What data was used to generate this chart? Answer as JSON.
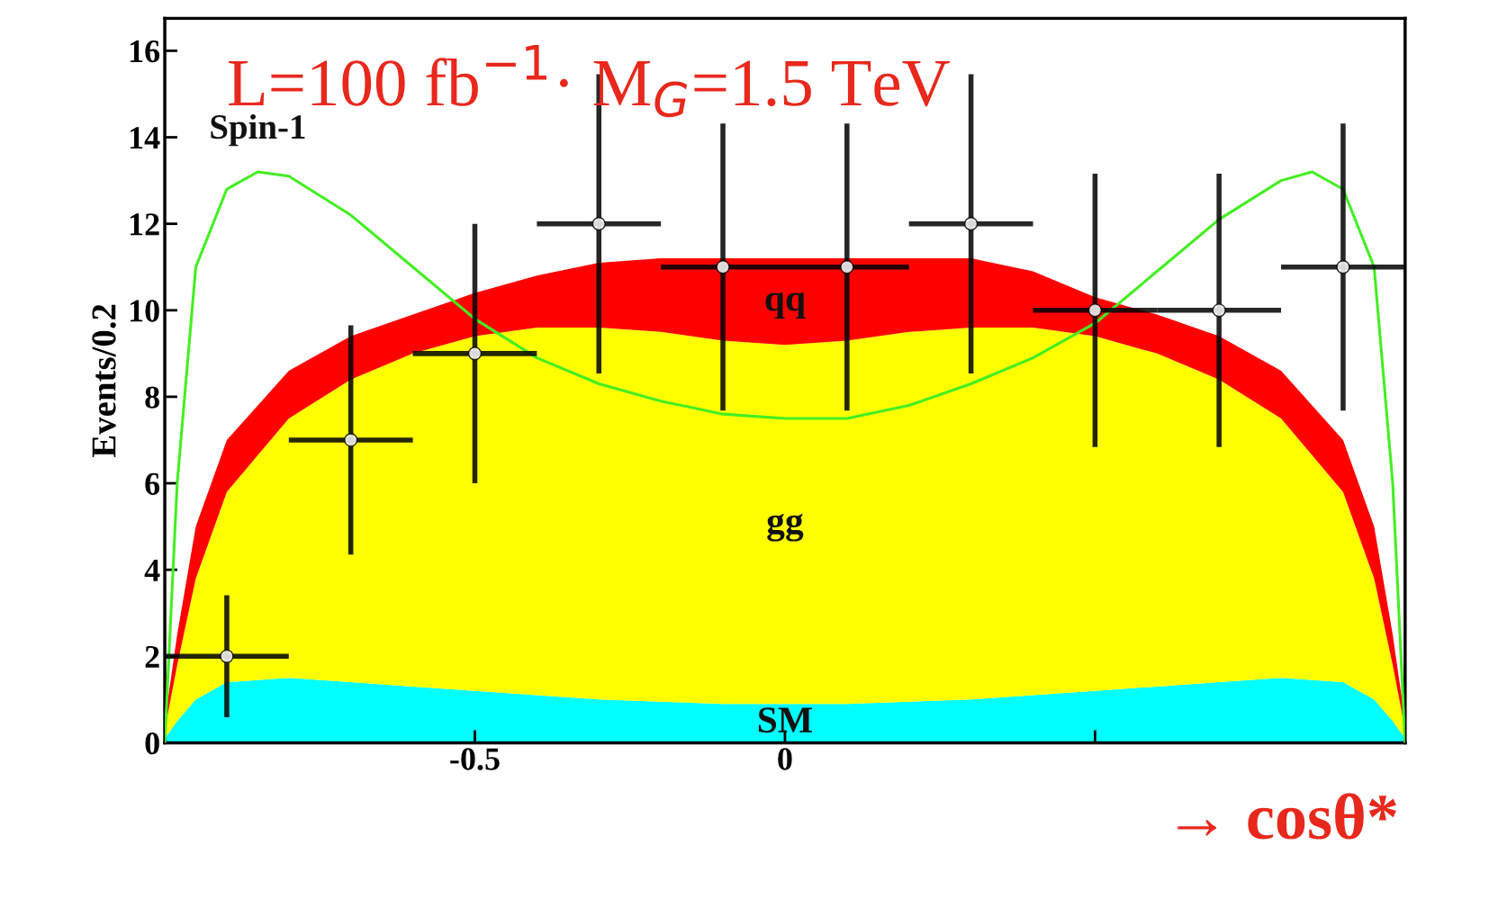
{
  "chart_data": {
    "type": "area",
    "title": "L=100 fb$^{−1}$· M$_{G}$=1.5 TeV",
    "xlabel": "→ cosθ*",
    "ylabel": "Events/0.2",
    "stacked": true,
    "xlim": [
      -1,
      1
    ],
    "ylim": [
      0,
      16.75
    ],
    "xticks": [
      -0.5,
      0,
      {
        "value": 0.5,
        "label": null
      }
    ],
    "yticks": [
      0,
      2,
      4,
      6,
      8,
      10,
      12,
      14,
      16
    ],
    "grid": false,
    "legend": false,
    "series": [
      {
        "name": "SM",
        "color": "#00ffff",
        "x": [
          -1,
          -0.98,
          -0.95,
          -0.9,
          -0.8,
          -0.7,
          -0.6,
          -0.5,
          -0.4,
          -0.3,
          -0.2,
          -0.1,
          0,
          0.1,
          0.2,
          0.3,
          0.4,
          0.5,
          0.6,
          0.7,
          0.8,
          0.9,
          0.95,
          0.98,
          1
        ],
        "values": [
          0.1,
          0.5,
          1.0,
          1.4,
          1.5,
          1.4,
          1.3,
          1.2,
          1.1,
          1.0,
          0.95,
          0.9,
          0.9,
          0.9,
          0.95,
          1.0,
          1.1,
          1.2,
          1.3,
          1.4,
          1.5,
          1.4,
          1.0,
          0.5,
          0.1
        ]
      },
      {
        "name": "gg",
        "color": "#ffff00",
        "x": [
          -1,
          -0.98,
          -0.95,
          -0.9,
          -0.8,
          -0.7,
          -0.6,
          -0.5,
          -0.4,
          -0.3,
          -0.2,
          -0.1,
          0,
          0.1,
          0.2,
          0.3,
          0.4,
          0.5,
          0.6,
          0.7,
          0.8,
          0.9,
          0.95,
          0.98,
          1
        ],
        "values": [
          0.2,
          1.3,
          2.8,
          4.4,
          6.0,
          7.0,
          7.7,
          8.2,
          8.5,
          8.6,
          8.55,
          8.4,
          8.3,
          8.4,
          8.55,
          8.6,
          8.5,
          8.2,
          7.7,
          7.0,
          6.0,
          4.4,
          2.8,
          1.3,
          0.2
        ]
      },
      {
        "name": "qq",
        "color": "#ff0000",
        "x": [
          -1,
          -0.98,
          -0.95,
          -0.9,
          -0.8,
          -0.7,
          -0.6,
          -0.5,
          -0.4,
          -0.3,
          -0.2,
          -0.1,
          0,
          0.1,
          0.2,
          0.3,
          0.4,
          0.5,
          0.6,
          0.7,
          0.8,
          0.9,
          0.95,
          0.98,
          1
        ],
        "values": [
          0.2,
          0.7,
          1.2,
          1.2,
          1.1,
          1.0,
          0.9,
          1.0,
          1.2,
          1.5,
          1.7,
          1.9,
          2.0,
          1.9,
          1.7,
          1.6,
          1.3,
          0.9,
          0.9,
          1.0,
          1.1,
          1.2,
          1.2,
          0.7,
          0.2
        ]
      },
      {
        "name": "Spin-1",
        "type": "line",
        "color": "#44ee22",
        "line_style": "solid",
        "marker": "none",
        "x": [
          -1,
          -0.98,
          -0.95,
          -0.9,
          -0.85,
          -0.8,
          -0.7,
          -0.6,
          -0.5,
          -0.4,
          -0.3,
          -0.2,
          -0.1,
          0,
          0.1,
          0.2,
          0.3,
          0.4,
          0.5,
          0.6,
          0.7,
          0.8,
          0.85,
          0.9,
          0.95,
          0.98,
          1
        ],
        "values": [
          0,
          6,
          11,
          12.8,
          13.2,
          13.1,
          12.2,
          11,
          9.8,
          8.9,
          8.3,
          7.9,
          7.6,
          7.5,
          7.5,
          7.8,
          8.3,
          8.9,
          9.7,
          10.9,
          12.1,
          13.0,
          13.2,
          12.8,
          11,
          6,
          0
        ]
      },
      {
        "type": "scatter",
        "color": "#000000",
        "marker": "circle",
        "x": [
          -0.9,
          -0.7,
          -0.5,
          -0.3,
          -0.1,
          0.1,
          0.3,
          0.5,
          0.7,
          0.9
        ],
        "values": [
          2,
          7,
          9,
          12,
          11,
          11,
          12,
          10,
          10,
          11
        ],
        "errors": [
          1.41,
          2.65,
          3,
          3.46,
          3.32,
          3.32,
          3.46,
          3.16,
          3.16,
          3.32
        ],
        "xerrors": [
          0.1,
          0.1,
          0.1,
          0.1,
          0.1,
          0.1,
          0.1,
          0.1,
          0.1,
          0.1
        ]
      }
    ]
  }
}
